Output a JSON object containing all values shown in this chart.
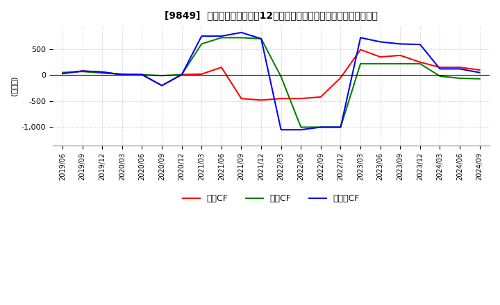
{
  "title": "[9849]  キャッシュフローの12か月移動合計の対前年同期増減額の推移",
  "ylabel": "(百万円)",
  "ylim": [
    -1350,
    950
  ],
  "yticks": [
    -1000,
    -500,
    0,
    500
  ],
  "background_color": "#ffffff",
  "grid_color": "#aaaaaa",
  "dates": [
    "2019/06",
    "2019/09",
    "2019/12",
    "2020/03",
    "2020/06",
    "2020/09",
    "2020/12",
    "2021/03",
    "2021/06",
    "2021/09",
    "2021/12",
    "2022/03",
    "2022/06",
    "2022/09",
    "2022/12",
    "2023/03",
    "2023/06",
    "2023/09",
    "2023/12",
    "2024/03",
    "2024/06",
    "2024/09"
  ],
  "operating_cf": [
    30,
    80,
    60,
    10,
    10,
    -200,
    10,
    20,
    150,
    -450,
    -480,
    -450,
    -450,
    -420,
    -50,
    490,
    350,
    380,
    250,
    150,
    150,
    100
  ],
  "investing_cf": [
    50,
    70,
    40,
    20,
    10,
    -10,
    10,
    600,
    720,
    720,
    700,
    -30,
    -1000,
    -1000,
    -1000,
    220,
    220,
    220,
    220,
    -20,
    -60,
    -70
  ],
  "free_cf": [
    30,
    80,
    60,
    10,
    10,
    -200,
    10,
    750,
    750,
    820,
    700,
    -1050,
    -1050,
    -1000,
    -1000,
    720,
    640,
    600,
    590,
    120,
    120,
    50
  ],
  "op_color": "#ff0000",
  "inv_color": "#008000",
  "free_color": "#0000ff",
  "legend_labels": [
    "営業CF",
    "投資CF",
    "フリーCF"
  ]
}
